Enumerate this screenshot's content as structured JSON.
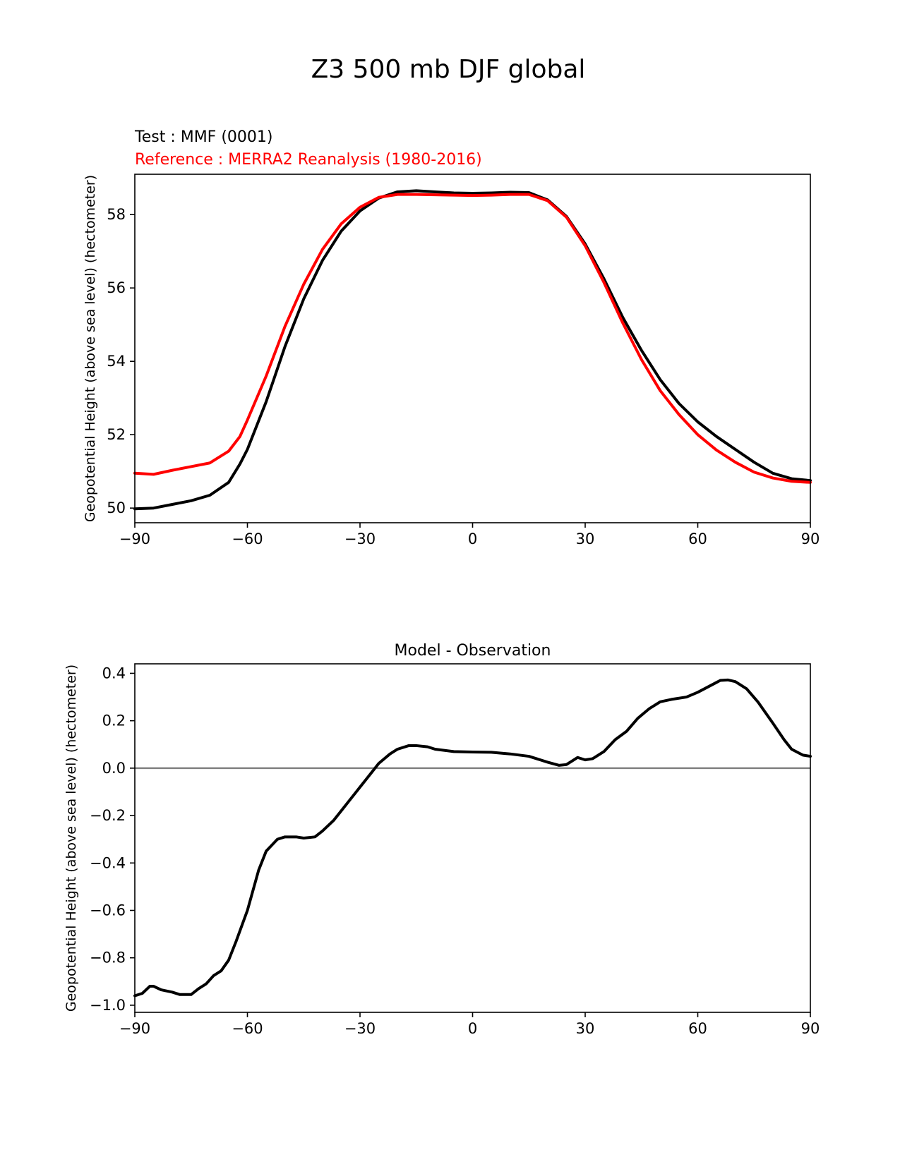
{
  "figure": {
    "title": "Z3 500 mb DJF global"
  },
  "colors": {
    "test": "#000000",
    "reference": "#ff0000",
    "zero_line": "#808080"
  },
  "chart_data": [
    {
      "type": "line",
      "legend_text": [
        {
          "text": "Test : MMF (0001)",
          "color": "#000000"
        },
        {
          "text": "Reference : MERRA2 Reanalysis (1980-2016)",
          "color": "#ff0000"
        }
      ],
      "ylabel": "Geopotential Height (above sea level) (hectometer)",
      "xlim": [
        -90,
        90
      ],
      "ylim": [
        49.6,
        59.1
      ],
      "xticks": [
        -90,
        -60,
        -30,
        0,
        30,
        60,
        90
      ],
      "yticks": [
        50,
        52,
        54,
        56,
        58
      ],
      "grid": false,
      "series": [
        {
          "color": "#000000",
          "points": [
            [
              -90,
              49.98
            ],
            [
              -85,
              50.0
            ],
            [
              -80,
              50.1
            ],
            [
              -75,
              50.2
            ],
            [
              -70,
              50.35
            ],
            [
              -65,
              50.7
            ],
            [
              -62,
              51.2
            ],
            [
              -60,
              51.6
            ],
            [
              -55,
              52.9
            ],
            [
              -50,
              54.4
            ],
            [
              -45,
              55.7
            ],
            [
              -40,
              56.75
            ],
            [
              -35,
              57.55
            ],
            [
              -30,
              58.1
            ],
            [
              -25,
              58.45
            ],
            [
              -20,
              58.62
            ],
            [
              -15,
              58.65
            ],
            [
              -10,
              58.62
            ],
            [
              -5,
              58.59
            ],
            [
              0,
              58.58
            ],
            [
              5,
              58.59
            ],
            [
              10,
              58.61
            ],
            [
              15,
              58.6
            ],
            [
              20,
              58.4
            ],
            [
              25,
              57.95
            ],
            [
              30,
              57.2
            ],
            [
              35,
              56.25
            ],
            [
              40,
              55.2
            ],
            [
              45,
              54.3
            ],
            [
              50,
              53.5
            ],
            [
              55,
              52.85
            ],
            [
              60,
              52.35
            ],
            [
              65,
              51.95
            ],
            [
              70,
              51.6
            ],
            [
              75,
              51.25
            ],
            [
              80,
              50.95
            ],
            [
              85,
              50.8
            ],
            [
              90,
              50.75
            ]
          ]
        },
        {
          "color": "#ff0000",
          "points": [
            [
              -90,
              50.95
            ],
            [
              -85,
              50.92
            ],
            [
              -80,
              51.03
            ],
            [
              -75,
              51.13
            ],
            [
              -70,
              51.23
            ],
            [
              -65,
              51.55
            ],
            [
              -62,
              51.95
            ],
            [
              -60,
              52.4
            ],
            [
              -55,
              53.6
            ],
            [
              -50,
              54.95
            ],
            [
              -45,
              56.1
            ],
            [
              -40,
              57.05
            ],
            [
              -35,
              57.75
            ],
            [
              -30,
              58.2
            ],
            [
              -25,
              58.47
            ],
            [
              -20,
              58.55
            ],
            [
              -15,
              58.55
            ],
            [
              -10,
              58.54
            ],
            [
              -5,
              58.53
            ],
            [
              0,
              58.52
            ],
            [
              5,
              58.53
            ],
            [
              10,
              58.55
            ],
            [
              15,
              58.55
            ],
            [
              20,
              58.38
            ],
            [
              25,
              57.93
            ],
            [
              30,
              57.15
            ],
            [
              35,
              56.15
            ],
            [
              40,
              55.05
            ],
            [
              45,
              54.05
            ],
            [
              50,
              53.2
            ],
            [
              55,
              52.55
            ],
            [
              60,
              52.0
            ],
            [
              65,
              51.58
            ],
            [
              70,
              51.25
            ],
            [
              75,
              50.98
            ],
            [
              80,
              50.82
            ],
            [
              85,
              50.73
            ],
            [
              90,
              50.7
            ]
          ]
        }
      ]
    },
    {
      "type": "line",
      "title": "Model - Observation",
      "ylabel": "Geopotential Height (above sea level) (hectometer)",
      "xlim": [
        -90,
        90
      ],
      "ylim": [
        -1.03,
        0.44
      ],
      "xticks": [
        -90,
        -60,
        -30,
        0,
        30,
        60,
        90
      ],
      "yticks": [
        -1.0,
        -0.8,
        -0.6,
        -0.4,
        -0.2,
        0.0,
        0.2,
        0.4
      ],
      "ytick_labels": [
        "−1.0",
        "−0.8",
        "−0.6",
        "−0.4",
        "−0.2",
        "0.0",
        "0.2",
        "0.4"
      ],
      "grid": false,
      "zero_line": 0,
      "series": [
        {
          "color": "#000000",
          "points": [
            [
              -90,
              -0.96
            ],
            [
              -88,
              -0.95
            ],
            [
              -86,
              -0.92
            ],
            [
              -85,
              -0.92
            ],
            [
              -83,
              -0.935
            ],
            [
              -80,
              -0.945
            ],
            [
              -78,
              -0.955
            ],
            [
              -75,
              -0.955
            ],
            [
              -73,
              -0.93
            ],
            [
              -71,
              -0.91
            ],
            [
              -69,
              -0.875
            ],
            [
              -67,
              -0.855
            ],
            [
              -65,
              -0.81
            ],
            [
              -63,
              -0.73
            ],
            [
              -60,
              -0.6
            ],
            [
              -57,
              -0.43
            ],
            [
              -55,
              -0.35
            ],
            [
              -52,
              -0.3
            ],
            [
              -50,
              -0.29
            ],
            [
              -47,
              -0.29
            ],
            [
              -45,
              -0.295
            ],
            [
              -42,
              -0.29
            ],
            [
              -40,
              -0.265
            ],
            [
              -37,
              -0.22
            ],
            [
              -35,
              -0.18
            ],
            [
              -32,
              -0.12
            ],
            [
              -30,
              -0.08
            ],
            [
              -27,
              -0.02
            ],
            [
              -25,
              0.02
            ],
            [
              -22,
              0.06
            ],
            [
              -20,
              0.08
            ],
            [
              -17,
              0.095
            ],
            [
              -15,
              0.095
            ],
            [
              -12,
              0.09
            ],
            [
              -10,
              0.08
            ],
            [
              -5,
              0.07
            ],
            [
              0,
              0.068
            ],
            [
              5,
              0.067
            ],
            [
              10,
              0.06
            ],
            [
              15,
              0.05
            ],
            [
              20,
              0.025
            ],
            [
              23,
              0.012
            ],
            [
              25,
              0.015
            ],
            [
              27,
              0.035
            ],
            [
              28,
              0.045
            ],
            [
              30,
              0.035
            ],
            [
              32,
              0.04
            ],
            [
              35,
              0.07
            ],
            [
              38,
              0.12
            ],
            [
              41,
              0.155
            ],
            [
              44,
              0.21
            ],
            [
              47,
              0.25
            ],
            [
              50,
              0.28
            ],
            [
              53,
              0.29
            ],
            [
              57,
              0.3
            ],
            [
              60,
              0.32
            ],
            [
              63,
              0.345
            ],
            [
              66,
              0.37
            ],
            [
              68,
              0.372
            ],
            [
              70,
              0.365
            ],
            [
              73,
              0.335
            ],
            [
              76,
              0.28
            ],
            [
              80,
              0.19
            ],
            [
              83,
              0.12
            ],
            [
              85,
              0.08
            ],
            [
              88,
              0.055
            ],
            [
              90,
              0.05
            ]
          ]
        }
      ]
    }
  ]
}
